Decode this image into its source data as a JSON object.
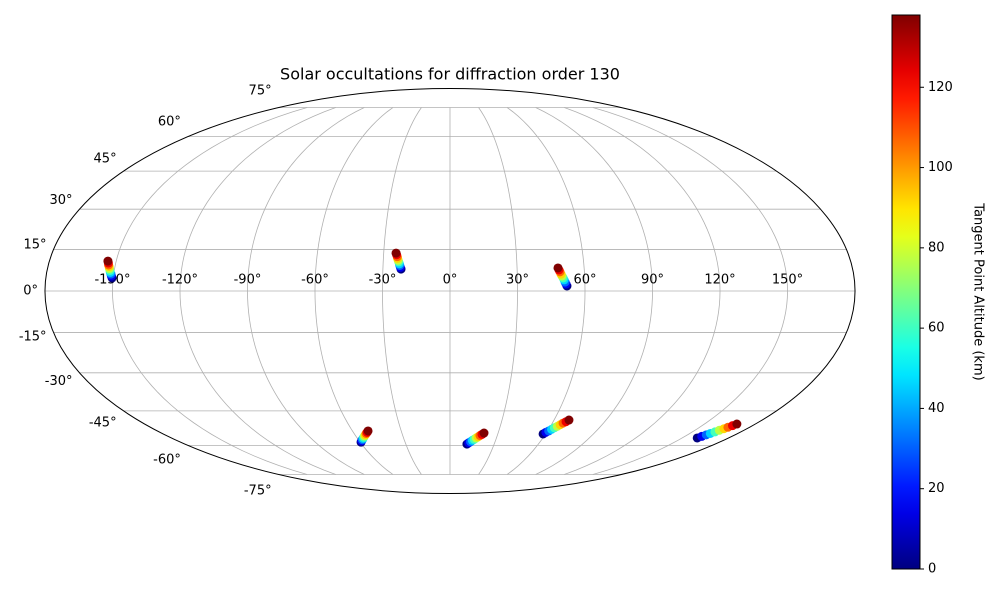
{
  "chart_data": {
    "type": "scatter",
    "projection": "mollweide",
    "title": "Solar occultations for diffraction order 130",
    "colorbar_label": "Tangent Point Altitude (km)",
    "colormap": "jet",
    "grid": true,
    "clim": [
      0,
      138
    ],
    "cticks": [
      0,
      20,
      40,
      60,
      80,
      100,
      120
    ],
    "xticks": [
      {
        "value": -150,
        "label": "-150°"
      },
      {
        "value": -120,
        "label": "-120°"
      },
      {
        "value": -90,
        "label": "-90°"
      },
      {
        "value": -60,
        "label": "-60°"
      },
      {
        "value": -30,
        "label": "-30°"
      },
      {
        "value": 0,
        "label": "0°"
      },
      {
        "value": 30,
        "label": "30°"
      },
      {
        "value": 60,
        "label": "60°"
      },
      {
        "value": 90,
        "label": "90°"
      },
      {
        "value": 120,
        "label": "120°"
      },
      {
        "value": 150,
        "label": "150°"
      }
    ],
    "yticks": [
      {
        "value": -75,
        "label": "-75°"
      },
      {
        "value": -60,
        "label": "-60°"
      },
      {
        "value": -45,
        "label": "-45°"
      },
      {
        "value": -30,
        "label": "-30°"
      },
      {
        "value": -15,
        "label": "-15°"
      },
      {
        "value": 0,
        "label": "0°"
      },
      {
        "value": 15,
        "label": "15°"
      },
      {
        "value": 30,
        "label": "30°"
      },
      {
        "value": 45,
        "label": "45°"
      },
      {
        "value": 60,
        "label": "60°"
      },
      {
        "value": 75,
        "label": "75°"
      }
    ],
    "x": [
      -150.5,
      -150.9,
      -151.2,
      -151.6,
      -151.9,
      -152.3,
      -152.6,
      -153.0,
      -153.3,
      -153.7,
      -21.9,
      -22.2,
      -22.5,
      -22.7,
      -23.0,
      -23.3,
      -23.6,
      -23.8,
      -24.1,
      -24.4,
      52.0,
      51.6,
      51.2,
      50.8,
      50.4,
      49.9,
      49.5,
      49.1,
      48.7,
      48.3,
      -59.4,
      -58.4,
      -57.4,
      -56.4,
      -55.4,
      -54.4,
      -53.4,
      -52.4,
      -51.4,
      -50.4,
      11.5,
      12.6,
      13.7,
      14.7,
      15.8,
      16.9,
      18.0,
      19.0,
      20.1,
      21.2,
      58.4,
      59.5,
      60.7,
      61.8,
      62.9,
      64.1,
      65.2,
      66.3,
      67.5,
      68.6,
      159.7,
      160.7,
      161.8,
      162.8,
      163.9,
      164.9,
      166.0,
      167.0,
      168.1,
      169.1
    ],
    "y": [
      4.7,
      5.4,
      6.1,
      6.7,
      7.4,
      8.1,
      8.8,
      9.4,
      10.1,
      10.8,
      7.9,
      8.5,
      9.2,
      9.8,
      10.5,
      11.1,
      11.8,
      12.4,
      13.1,
      13.7,
      1.8,
      2.5,
      3.2,
      4.0,
      4.7,
      5.4,
      6.1,
      6.9,
      7.6,
      8.3,
      -58.5,
      -57.9,
      -57.4,
      -56.8,
      -56.3,
      -55.7,
      -55.2,
      -54.6,
      -54.1,
      -53.5,
      -59.4,
      -58.8,
      -58.3,
      -57.7,
      -57.2,
      -56.6,
      -56.1,
      -55.5,
      -55.0,
      -54.4,
      -54.8,
      -54.1,
      -53.5,
      -52.8,
      -52.1,
      -51.5,
      -50.8,
      -50.1,
      -49.5,
      -48.8,
      -56.6,
      -55.9,
      -55.2,
      -54.6,
      -53.9,
      -53.2,
      -52.5,
      -51.9,
      -51.2,
      -50.5
    ],
    "c": [
      0,
      15,
      31,
      46,
      61,
      77,
      92,
      107,
      123,
      138,
      0,
      15,
      31,
      46,
      61,
      77,
      92,
      107,
      123,
      138,
      0,
      15,
      31,
      46,
      61,
      77,
      92,
      107,
      123,
      138,
      0,
      15,
      31,
      46,
      61,
      77,
      92,
      107,
      123,
      138,
      0,
      15,
      31,
      46,
      61,
      77,
      92,
      107,
      123,
      138,
      0,
      15,
      31,
      46,
      61,
      77,
      92,
      107,
      123,
      138,
      0,
      15,
      31,
      46,
      61,
      77,
      92,
      107,
      123,
      138
    ]
  }
}
